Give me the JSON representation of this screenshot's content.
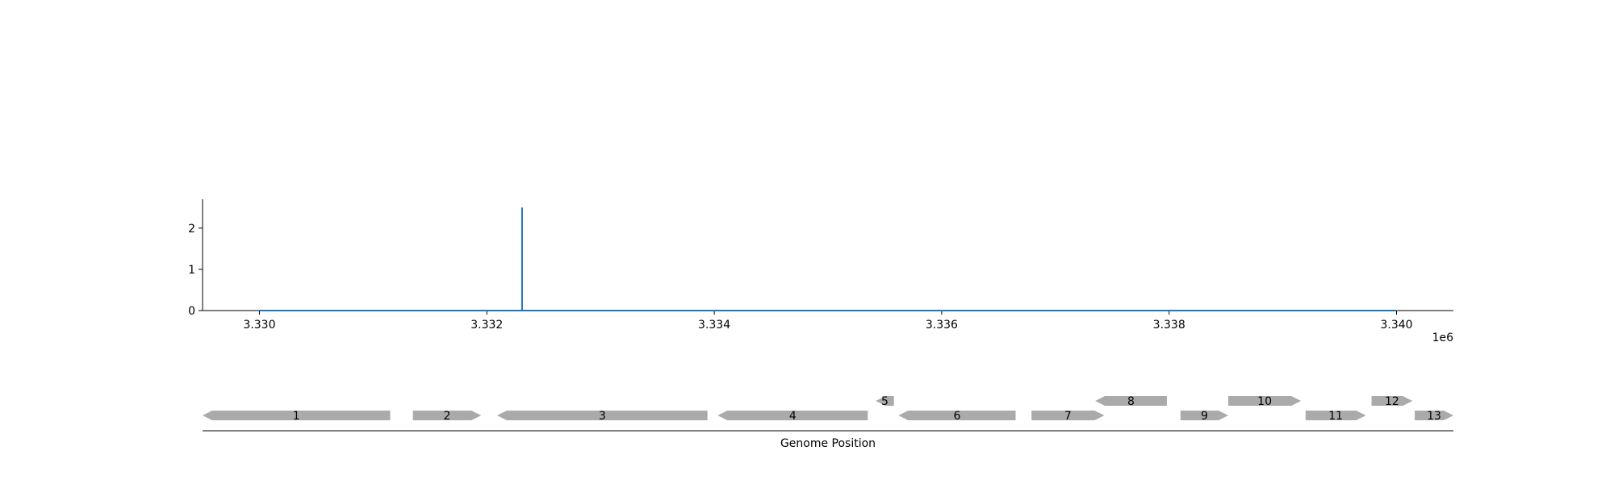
{
  "chart_data": [
    {
      "type": "line",
      "title": "",
      "xlabel": "",
      "ylabel": "",
      "x_offset_label": "1e6",
      "xlim": [
        3329500,
        3340500
      ],
      "ylim": [
        0,
        2.7
      ],
      "xticks": [
        3330000,
        3332000,
        3334000,
        3336000,
        3338000,
        3340000
      ],
      "xtick_labels": [
        "3.330",
        "3.332",
        "3.334",
        "3.336",
        "3.338",
        "3.340"
      ],
      "yticks": [
        0,
        1,
        2
      ],
      "ytick_labels": [
        "0",
        "1",
        "2"
      ],
      "grid": false,
      "legend": "none",
      "series": [
        {
          "color": "#1f77b4",
          "x": [
            3330000,
            3332310,
            3332310,
            3332310,
            3340000
          ],
          "y": [
            0,
            0,
            2.5,
            0,
            0
          ]
        }
      ]
    },
    {
      "type": "gene-track",
      "xlabel": "Genome Position",
      "xlim": [
        3329500,
        3340500
      ],
      "color": "#aaaaaa",
      "genes": [
        {
          "label": "1",
          "start": 3329500,
          "end": 3331150,
          "strand": "-",
          "row": 0
        },
        {
          "label": "2",
          "start": 3331350,
          "end": 3331950,
          "strand": "+",
          "row": 0
        },
        {
          "label": "3",
          "start": 3332090,
          "end": 3333940,
          "strand": "-",
          "row": 0
        },
        {
          "label": "4",
          "start": 3334030,
          "end": 3335350,
          "strand": "-",
          "row": 0
        },
        {
          "label": "5",
          "start": 3335420,
          "end": 3335580,
          "strand": "-",
          "row": 1
        },
        {
          "label": "6",
          "start": 3335620,
          "end": 3336650,
          "strand": "-",
          "row": 0
        },
        {
          "label": "7",
          "start": 3336790,
          "end": 3337430,
          "strand": "+",
          "row": 0
        },
        {
          "label": "8",
          "start": 3337350,
          "end": 3337980,
          "strand": "-",
          "row": 1
        },
        {
          "label": "9",
          "start": 3338100,
          "end": 3338520,
          "strand": "+",
          "row": 0
        },
        {
          "label": "10",
          "start": 3338520,
          "end": 3339160,
          "strand": "+",
          "row": 1
        },
        {
          "label": "11",
          "start": 3339200,
          "end": 3339730,
          "strand": "+",
          "row": 0
        },
        {
          "label": "12",
          "start": 3339780,
          "end": 3340140,
          "strand": "+",
          "row": 1
        },
        {
          "label": "13",
          "start": 3340160,
          "end": 3340500,
          "strand": "+",
          "row": 0
        }
      ]
    }
  ]
}
